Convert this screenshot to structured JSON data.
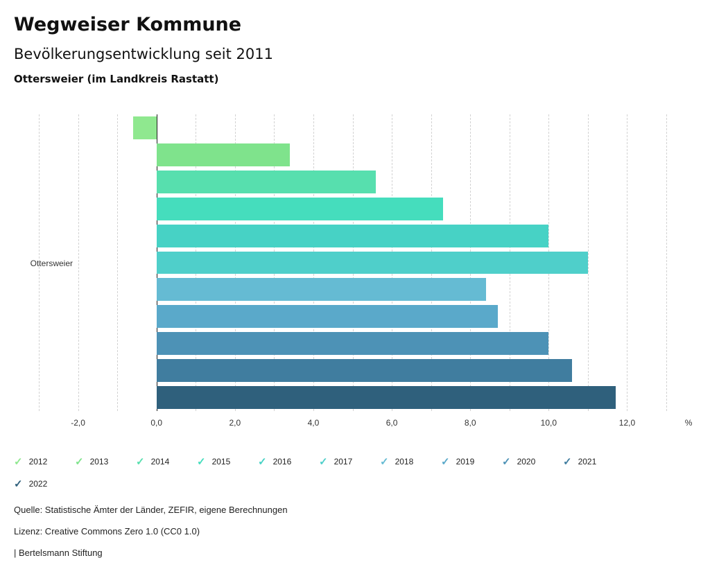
{
  "header": {
    "title": "Wegweiser Kommune",
    "subtitle": "Bevölkerungsentwicklung seit 2011",
    "region": "Ottersweier (im Landkreis Rastatt)"
  },
  "icons": {
    "legend_check": "✓"
  },
  "chart_data": {
    "type": "bar",
    "orientation": "horizontal",
    "title": "Bevölkerungsentwicklung seit 2011",
    "group_label": "Ottersweier",
    "categories": [
      "2012",
      "2013",
      "2014",
      "2015",
      "2016",
      "2017",
      "2018",
      "2019",
      "2020",
      "2021",
      "2022"
    ],
    "values": [
      -0.6,
      3.4,
      5.6,
      7.3,
      10.0,
      11.0,
      8.4,
      8.7,
      10.0,
      10.6,
      11.7
    ],
    "colors": [
      "#8fe88f",
      "#7fe38c",
      "#57dfae",
      "#45ddbd",
      "#47d2c5",
      "#4fcfca",
      "#65bbd3",
      "#5aa9ca",
      "#4d92b6",
      "#407d9f",
      "#2f607c"
    ],
    "xlim": [
      -3.0,
      13.6
    ],
    "x_ticks": [
      -2,
      0,
      2,
      4,
      6,
      8,
      10,
      12
    ],
    "x_tick_labels": [
      "-2,0",
      "0,0",
      "2,0",
      "4,0",
      "6,0",
      "8,0",
      "10,0",
      "12,0"
    ],
    "x_unit": "%",
    "grid": "vertical dashed every 1.0",
    "legend_position": "bottom"
  },
  "footer": {
    "source": "Quelle: Statistische Ämter der Länder, ZEFIR, eigene Berechnungen",
    "license": "Lizenz: Creative Commons Zero 1.0 (CC0 1.0)",
    "branding": "| Bertelsmann Stiftung"
  }
}
